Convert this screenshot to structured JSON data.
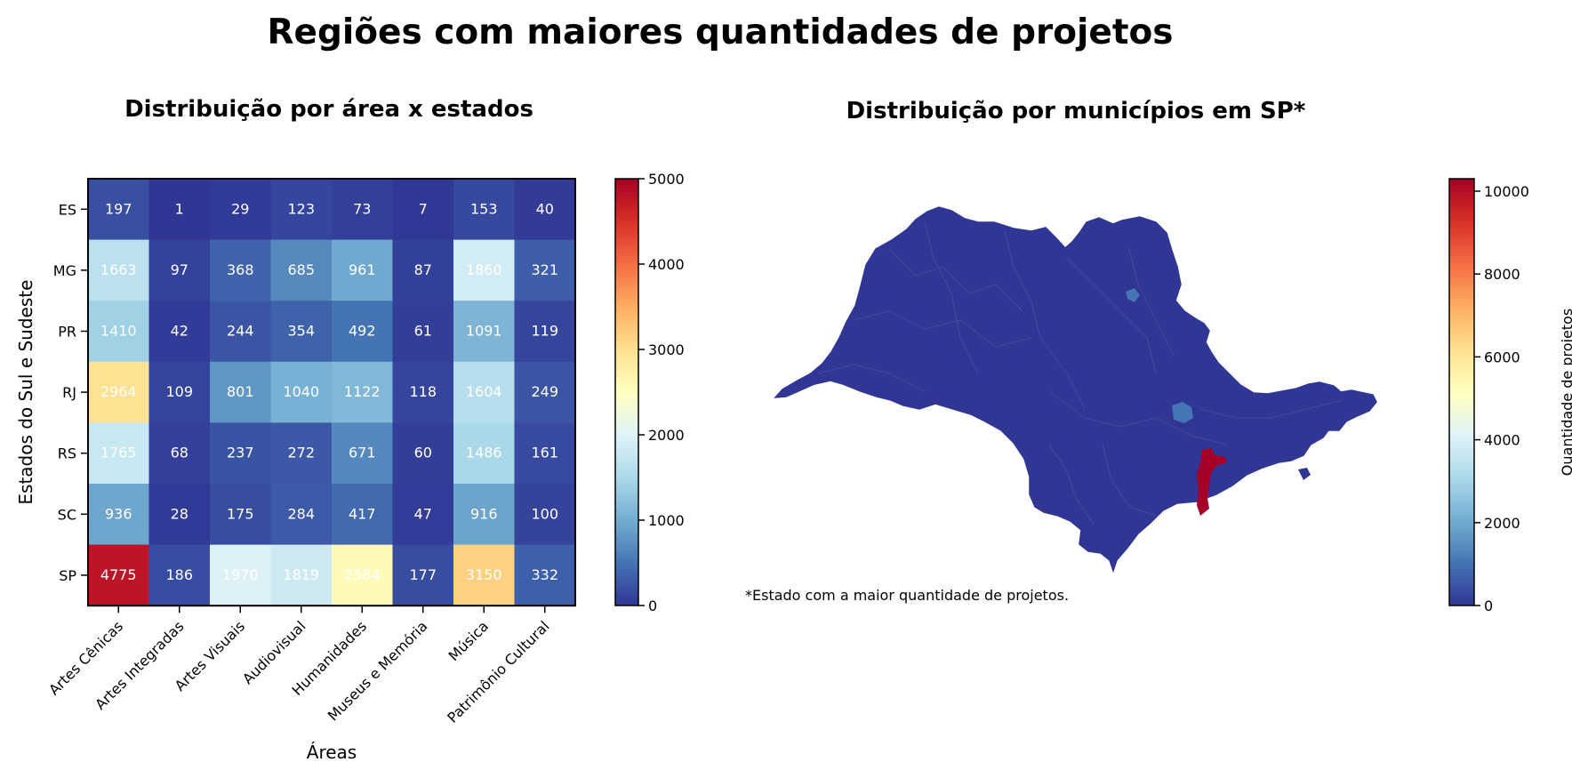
{
  "figure": {
    "title": "Regiões com maiores quantidades de projetos",
    "footnote": "*Estado com a maior quantidade de projetos."
  },
  "chart_data": [
    {
      "type": "heatmap",
      "title": "Distribuição por área x estados",
      "xlabel": "Áreas",
      "ylabel": "Estados do Sul e Sudeste",
      "x": [
        "Artes Cênicas",
        "Artes Integradas",
        "Artes Visuais",
        "Audiovisual",
        "Humanidades",
        "Museus e Memória",
        "Música",
        "Patrimônio Cultural"
      ],
      "y": [
        "ES",
        "MG",
        "PR",
        "RJ",
        "RS",
        "SC",
        "SP"
      ],
      "values": [
        [
          197,
          1,
          29,
          123,
          73,
          7,
          153,
          40
        ],
        [
          1663,
          97,
          368,
          685,
          961,
          87,
          1860,
          321
        ],
        [
          1410,
          42,
          244,
          354,
          492,
          61,
          1091,
          119
        ],
        [
          2964,
          109,
          801,
          1040,
          1122,
          118,
          1604,
          249
        ],
        [
          1765,
          68,
          237,
          272,
          671,
          60,
          1486,
          161
        ],
        [
          936,
          28,
          175,
          284,
          417,
          47,
          916,
          100
        ],
        [
          4775,
          186,
          1970,
          1819,
          2584,
          177,
          3150,
          332
        ]
      ],
      "colorbar": {
        "range": [
          0,
          5000
        ],
        "ticks": [
          0,
          1000,
          2000,
          3000,
          4000,
          5000
        ],
        "colormap": "RdYlBu_r"
      }
    },
    {
      "type": "map",
      "title": "Distribuição por municípios em SP*",
      "colorbar": {
        "label": "Quantidade de projetos",
        "range": [
          0,
          10300
        ],
        "ticks": [
          0,
          2000,
          4000,
          6000,
          8000,
          10000
        ],
        "colormap": "RdYlBu_r"
      },
      "colors": {
        "base_fill": "#313695",
        "highlight_fill": "#a50026",
        "secondary_fill": "#4575b4"
      }
    }
  ]
}
